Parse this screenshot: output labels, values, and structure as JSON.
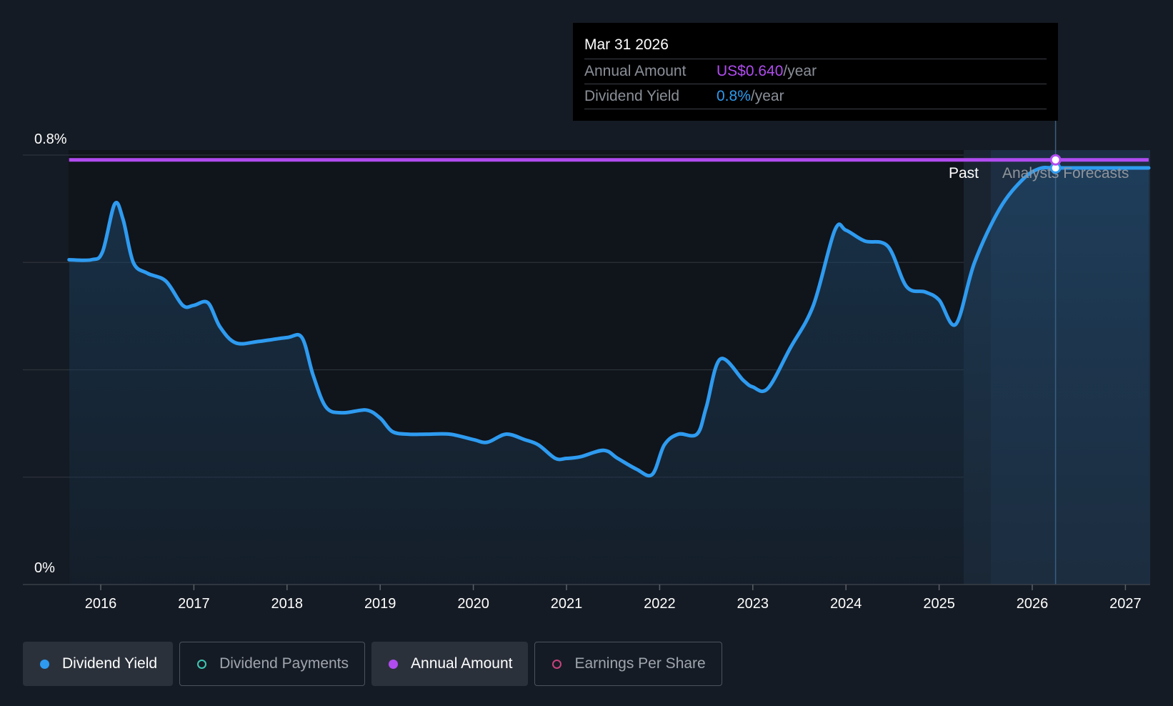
{
  "chart_data": {
    "type": "line",
    "x_ticks": [
      "2016",
      "2017",
      "2018",
      "2019",
      "2020",
      "2021",
      "2022",
      "2023",
      "2024",
      "2025",
      "2026",
      "2027"
    ],
    "y_tick_labels": {
      "max": "0.8%",
      "min": "0%"
    },
    "ylim": [
      0,
      0.8
    ],
    "grid": true,
    "regions": {
      "past_label": "Past",
      "forecast_label": "Analysts Forecasts"
    },
    "series": [
      {
        "name": "Dividend Yield",
        "color": "#2e9bf0",
        "points": [
          [
            2015.66,
            0.605
          ],
          [
            2015.9,
            0.605
          ],
          [
            2016.02,
            0.62
          ],
          [
            2016.15,
            0.709
          ],
          [
            2016.24,
            0.68
          ],
          [
            2016.35,
            0.6
          ],
          [
            2016.5,
            0.58
          ],
          [
            2016.7,
            0.565
          ],
          [
            2016.88,
            0.52
          ],
          [
            2017.0,
            0.52
          ],
          [
            2017.15,
            0.525
          ],
          [
            2017.28,
            0.48
          ],
          [
            2017.45,
            0.45
          ],
          [
            2017.7,
            0.453
          ],
          [
            2018.0,
            0.46
          ],
          [
            2018.16,
            0.46
          ],
          [
            2018.28,
            0.39
          ],
          [
            2018.42,
            0.33
          ],
          [
            2018.6,
            0.32
          ],
          [
            2018.85,
            0.325
          ],
          [
            2019.0,
            0.31
          ],
          [
            2019.13,
            0.285
          ],
          [
            2019.3,
            0.28
          ],
          [
            2019.5,
            0.28
          ],
          [
            2019.75,
            0.28
          ],
          [
            2020.0,
            0.27
          ],
          [
            2020.15,
            0.265
          ],
          [
            2020.35,
            0.28
          ],
          [
            2020.55,
            0.27
          ],
          [
            2020.7,
            0.26
          ],
          [
            2020.88,
            0.235
          ],
          [
            2021.0,
            0.235
          ],
          [
            2021.15,
            0.238
          ],
          [
            2021.4,
            0.25
          ],
          [
            2021.55,
            0.235
          ],
          [
            2021.75,
            0.215
          ],
          [
            2021.92,
            0.205
          ],
          [
            2022.05,
            0.26
          ],
          [
            2022.2,
            0.28
          ],
          [
            2022.4,
            0.28
          ],
          [
            2022.5,
            0.33
          ],
          [
            2022.65,
            0.42
          ],
          [
            2022.9,
            0.38
          ],
          [
            2023.0,
            0.368
          ],
          [
            2023.16,
            0.365
          ],
          [
            2023.4,
            0.44
          ],
          [
            2023.65,
            0.52
          ],
          [
            2023.88,
            0.66
          ],
          [
            2024.0,
            0.66
          ],
          [
            2024.2,
            0.64
          ],
          [
            2024.45,
            0.63
          ],
          [
            2024.65,
            0.555
          ],
          [
            2024.85,
            0.545
          ],
          [
            2025.0,
            0.53
          ],
          [
            2025.18,
            0.485
          ],
          [
            2025.38,
            0.6
          ],
          [
            2025.65,
            0.7
          ],
          [
            2025.9,
            0.755
          ],
          [
            2026.08,
            0.775
          ],
          [
            2026.24,
            0.776
          ],
          [
            2026.5,
            0.776
          ],
          [
            2027.25,
            0.776
          ]
        ]
      },
      {
        "name": "Annual Amount",
        "color": "#b14cf0",
        "points": [
          [
            2015.66,
            0.791
          ],
          [
            2027.25,
            0.791
          ]
        ]
      }
    ],
    "highlight": {
      "x": 2026.25
    },
    "tooltip": {
      "date": "Mar 31 2026",
      "rows": [
        {
          "label": "Annual Amount",
          "value": "US$0.640",
          "unit": "/year"
        },
        {
          "label": "Dividend Yield",
          "value": "0.8%",
          "unit": "/year"
        }
      ]
    }
  },
  "legend": [
    {
      "label": "Dividend Yield",
      "active": true
    },
    {
      "label": "Dividend Payments",
      "active": false
    },
    {
      "label": "Annual Amount",
      "active": true
    },
    {
      "label": "Earnings Per Share",
      "active": false
    }
  ]
}
